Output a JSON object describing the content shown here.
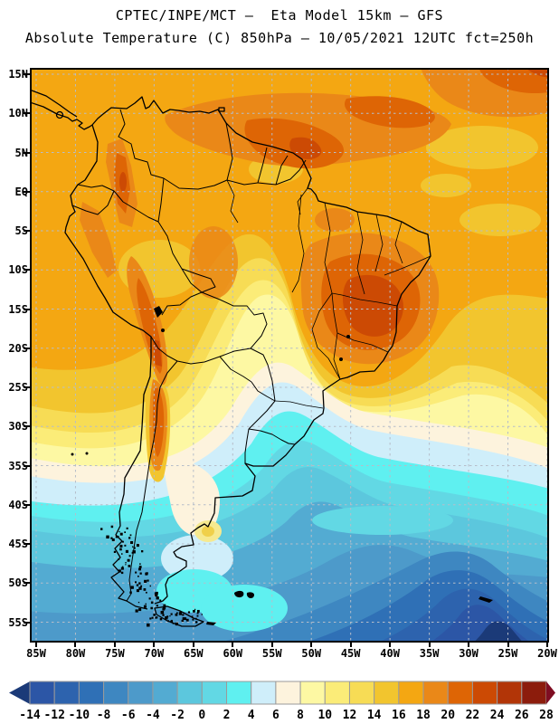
{
  "header": {
    "line1": "CPTEC/INPE/MCT –  Eta Model 15km – GFS",
    "line2": "Absolute Temperature (C) 850hPa – 10/05/2021 12UTC fct=250h"
  },
  "axes": {
    "lat_labels": [
      "15N",
      "10N",
      "5N",
      "EQ",
      "5S",
      "10S",
      "15S",
      "20S",
      "25S",
      "30S",
      "35S",
      "40S",
      "45S",
      "50S",
      "55S"
    ],
    "lon_labels": [
      "85W",
      "80W",
      "75W",
      "70W",
      "65W",
      "60W",
      "55W",
      "50W",
      "45W",
      "40W",
      "35W",
      "30W",
      "25W",
      "20W"
    ]
  },
  "colorbar": {
    "tick_values": [
      "-14",
      "-12",
      "-10",
      "-8",
      "-6",
      "-4",
      "-2",
      "0",
      "2",
      "4",
      "6",
      "8",
      "10",
      "12",
      "14",
      "16",
      "18",
      "20",
      "22",
      "24",
      "26",
      "28"
    ],
    "cell_colors": [
      "#2c56a6",
      "#2d63ae",
      "#2f70b6",
      "#3e87c1",
      "#4d9aca",
      "#53abd2",
      "#5cc7dd",
      "#62d8e4",
      "#5ff0f0",
      "#cfeefa",
      "#fdf3dd",
      "#fdf8a3",
      "#fbec78",
      "#f7dc55",
      "#f2c52e",
      "#f4a712",
      "#ea8818",
      "#de6505",
      "#cc4a04",
      "#b23507",
      "#8c1c0c"
    ],
    "left_arrow_color": "#1b3a78",
    "right_arrow_color": "#7f0d22"
  },
  "map_meta": {
    "grid_color": "#b6bdc9",
    "frame_color": "#000000",
    "base_field_color": "#f4a712"
  }
}
